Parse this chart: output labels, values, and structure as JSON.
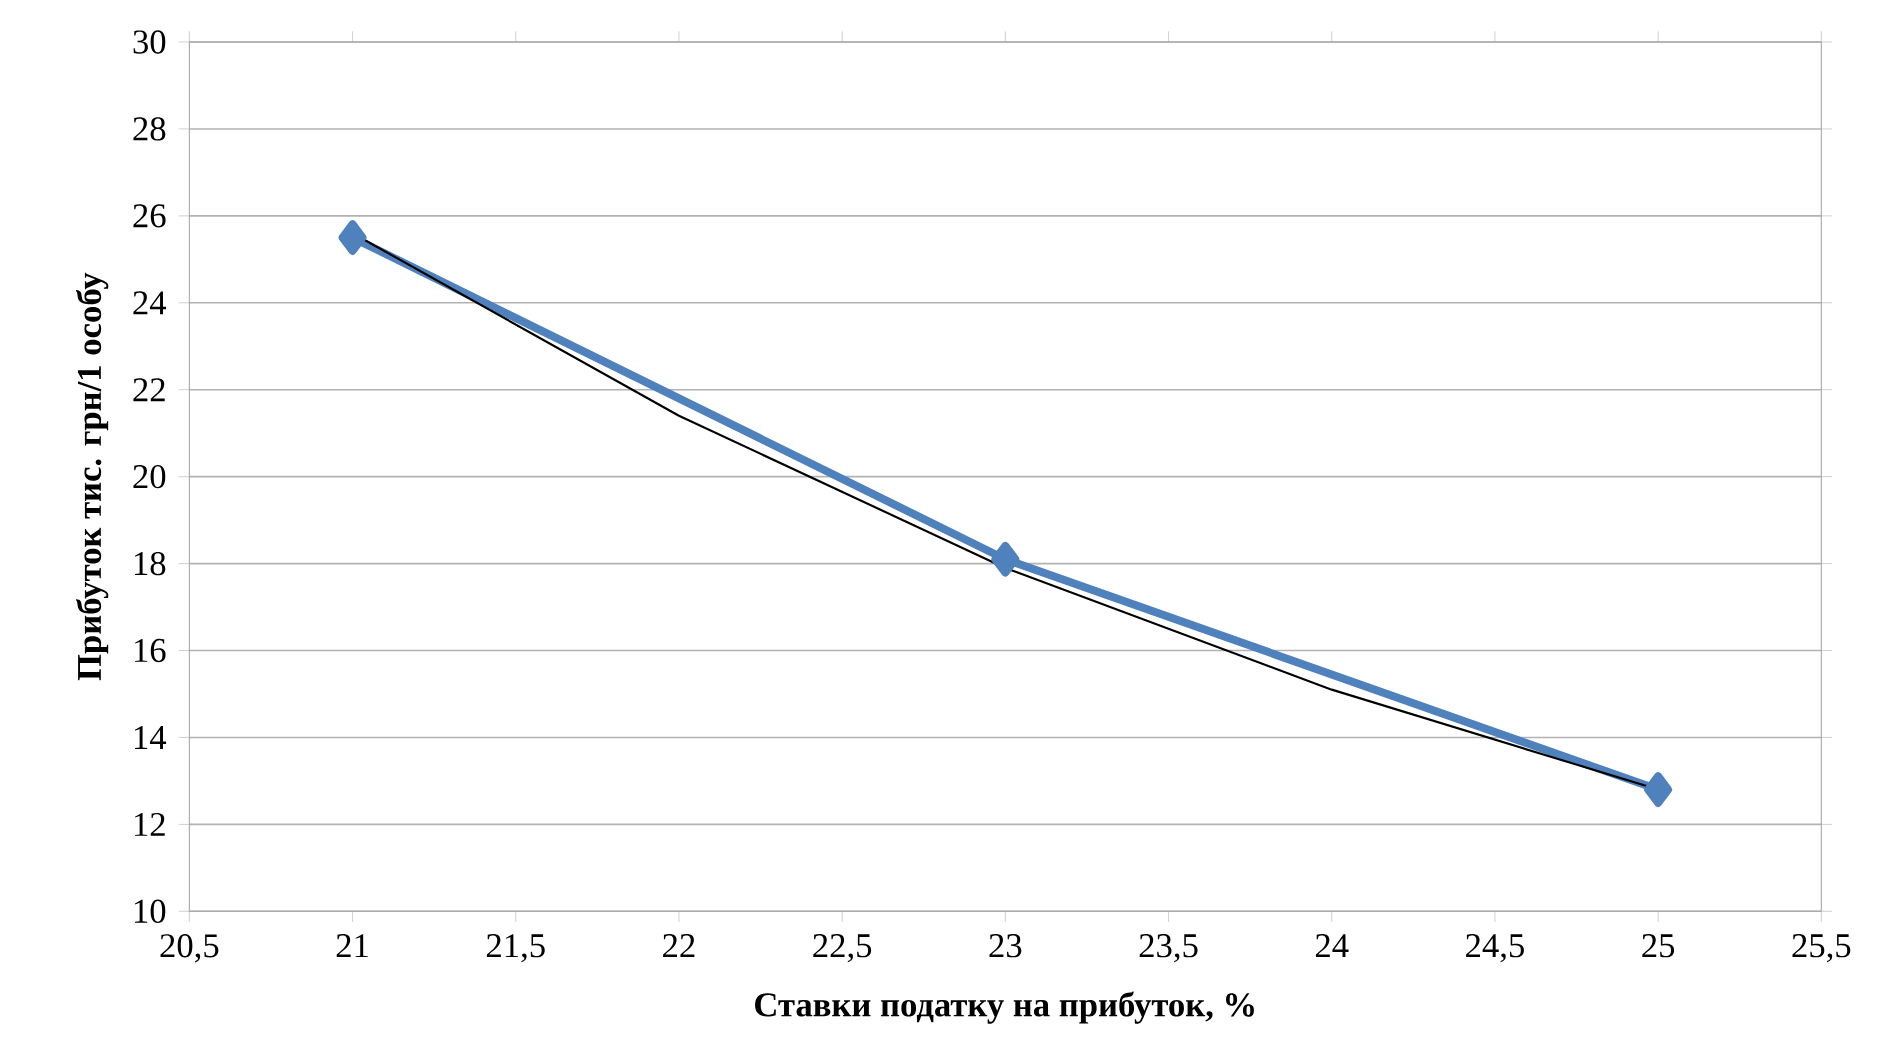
{
  "chart_data": {
    "type": "line",
    "xlabel": "Ставки податку на прибуток, %",
    "ylabel": "Прибуток тис. грн/1 особу",
    "xlim": [
      20.5,
      25.5
    ],
    "xticks": [
      {
        "value": 20.5,
        "label": "20,5"
      },
      21,
      {
        "value": 21.5,
        "label": "21,5"
      },
      22,
      {
        "value": 22.5,
        "label": "22,5"
      },
      23,
      {
        "value": 23.5,
        "label": "23,5"
      },
      24,
      {
        "value": 24.5,
        "label": "24,5"
      },
      25,
      {
        "value": 25.5,
        "label": "25,5"
      }
    ],
    "ylim": [
      10,
      30
    ],
    "yticks": [
      10,
      12,
      14,
      16,
      18,
      20,
      22,
      24,
      26,
      28,
      30
    ],
    "grid": "y",
    "marker": "diamond",
    "series": [
      {
        "color": "#4f81bd",
        "x": [
          21,
          23,
          25
        ],
        "values": [
          25.5,
          18.1,
          12.8
        ]
      },
      {
        "type": "line",
        "color": "#000000",
        "marker": "none",
        "x": [
          21,
          22,
          23,
          24,
          25
        ],
        "values": [
          25.6,
          21.4,
          17.9,
          15.1,
          12.8
        ]
      }
    ]
  }
}
